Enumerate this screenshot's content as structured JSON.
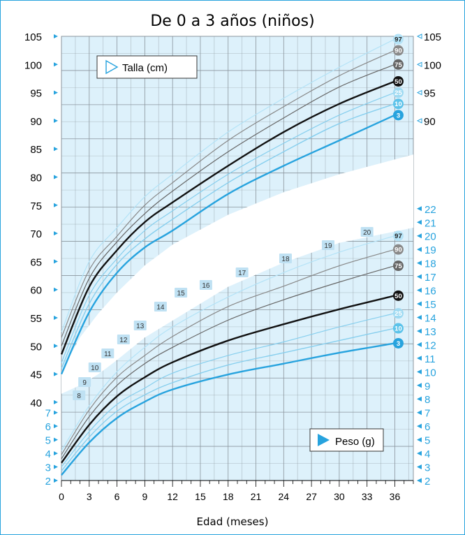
{
  "colors": {
    "background": "#ddf1fb",
    "grid": "#8a949c",
    "accent_blue": "#27a3de",
    "light_blue": "#87cfee",
    "pale_blue": "#b4e3f7",
    "grey": "#888888",
    "dark": "#111111",
    "label_box": "#bfe1f3"
  },
  "chart_data": {
    "type": "line",
    "title": "De 0 a 3 años (niños)",
    "xlabel": "Edad (meses)",
    "x_ticks": [
      0,
      3,
      6,
      9,
      12,
      15,
      18,
      21,
      24,
      27,
      30,
      33,
      36
    ],
    "grid": true,
    "panels": [
      {
        "name": "Talla (cm)",
        "legend_position": "top-left",
        "y_ticks_left": [
          40,
          45,
          50,
          55,
          60,
          65,
          70,
          75,
          80,
          85,
          90,
          95,
          100,
          105
        ],
        "y_ticks_right": [
          90,
          95,
          100,
          105
        ],
        "ylim": [
          40,
          105
        ],
        "x": [
          0,
          3,
          6,
          9,
          12,
          18,
          24,
          30,
          36
        ],
        "series": [
          {
            "name": "97",
            "values": [
              52.5,
              65,
              71,
              76.5,
              80.5,
              88,
              94,
              99.5,
              104.5
            ]
          },
          {
            "name": "90",
            "values": [
              51.5,
              63.5,
              69.5,
              75,
              79,
              86.5,
              92.5,
              98,
              102.5
            ]
          },
          {
            "name": "75",
            "values": [
              50,
              62,
              68.5,
              73.5,
              77.5,
              84.5,
              90.5,
              96,
              100
            ]
          },
          {
            "name": "50",
            "values": [
              48.5,
              60.5,
              67,
              72,
              75.5,
              82,
              88,
              93,
              97
            ]
          },
          {
            "name": "25",
            "values": [
              47,
              59,
              65.5,
              70.5,
              74,
              80.5,
              86,
              91,
              95
            ]
          },
          {
            "name": "10",
            "values": [
              46,
              57.5,
              64.5,
              69,
              72.5,
              79,
              84.5,
              89.5,
              93
            ]
          },
          {
            "name": "3",
            "values": [
              45,
              56,
              63,
              67.5,
              70.5,
              77,
              82,
              86.5,
              91
            ]
          }
        ]
      },
      {
        "name": "Peso (g)",
        "legend_position": "bottom-right",
        "y_ticks_left": [
          2,
          3,
          4,
          5,
          6,
          7
        ],
        "y_ticks_right": [
          2,
          3,
          4,
          5,
          6,
          7,
          8,
          9,
          10,
          11,
          12,
          13,
          14,
          15,
          16,
          17,
          18,
          19,
          20,
          21,
          22
        ],
        "ylim": [
          2,
          22
        ],
        "x": [
          0,
          3,
          6,
          9,
          12,
          18,
          24,
          30,
          36
        ],
        "series": [
          {
            "name": "97",
            "values": [
              4.2,
              7.5,
              10,
              11.8,
              13.3,
              15.5,
              17.3,
              18.8,
              20
            ]
          },
          {
            "name": "90",
            "values": [
              3.9,
              7.2,
              9.6,
              11.2,
              12.6,
              14.8,
              16.3,
              17.8,
              19
            ]
          },
          {
            "name": "75",
            "values": [
              3.6,
              6.7,
              9,
              10.6,
              11.8,
              13.8,
              15.3,
              16.6,
              17.8
            ]
          },
          {
            "name": "50",
            "values": [
              3.3,
              6.1,
              8.2,
              9.6,
              10.7,
              12.3,
              13.5,
              14.6,
              15.6
            ]
          },
          {
            "name": "25",
            "values": [
              3,
              5.6,
              7.6,
              8.8,
              9.9,
              11.2,
              12.2,
              13.3,
              14.3
            ]
          },
          {
            "name": "10",
            "values": [
              2.7,
              5.2,
              7.1,
              8.3,
              9.2,
              10.5,
              11.4,
              12.3,
              13.2
            ]
          },
          {
            "name": "3",
            "values": [
              2.4,
              4.8,
              6.6,
              7.8,
              8.7,
              9.8,
              10.6,
              11.4,
              12.1
            ]
          }
        ],
        "weight_labels": [
          "8",
          "9",
          "10",
          "11",
          "12",
          "13",
          "14",
          "15",
          "16",
          "17",
          "18",
          "19",
          "20"
        ]
      }
    ]
  }
}
